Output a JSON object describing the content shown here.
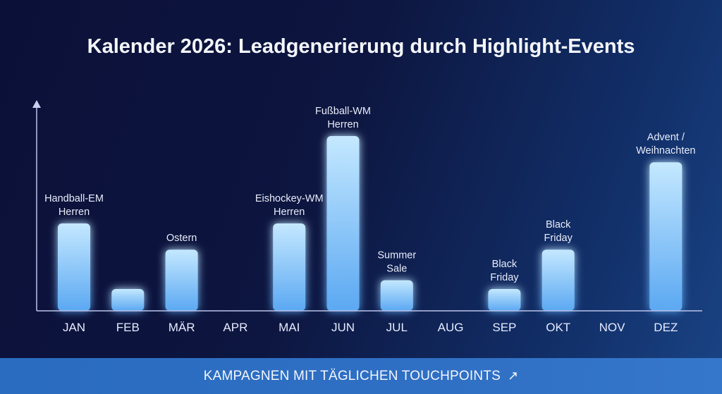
{
  "footer": {
    "label": "KAMPAGNEN MIT TÄGLICHEN TOUCHPOINTS",
    "icon": "arrow-up-right-icon",
    "arrow": "↗"
  },
  "chart_data": {
    "type": "bar",
    "title": "Kalender 2026: Leadgenerierung durch Highlight-Events",
    "xlabel": "",
    "ylabel": "",
    "ylim": [
      0,
      120
    ],
    "grid": false,
    "categories": [
      "JAN",
      "FEB",
      "MÄR",
      "APR",
      "MAI",
      "JUN",
      "JUL",
      "AUG",
      "SEP",
      "OKT",
      "NOV",
      "DEZ"
    ],
    "values": [
      50,
      12.5,
      35,
      0,
      50,
      100,
      17.5,
      0,
      12.5,
      35,
      0,
      85
    ],
    "annotations": [
      [
        "Handball-EM",
        "Herren"
      ],
      null,
      [
        "Ostern"
      ],
      null,
      [
        "Eishockey-WM",
        "Herren"
      ],
      [
        "Fußball-WM",
        "Herren"
      ],
      [
        "Summer",
        "Sale"
      ],
      null,
      [
        "Black",
        "Friday"
      ],
      [
        "Black",
        "Friday"
      ],
      null,
      [
        "Advent /",
        "Weihnachten"
      ]
    ],
    "colors": {
      "bar_top": "#bfe6ff",
      "bar_bottom": "#5aaaf5",
      "axis": "#b9c3ea"
    }
  }
}
